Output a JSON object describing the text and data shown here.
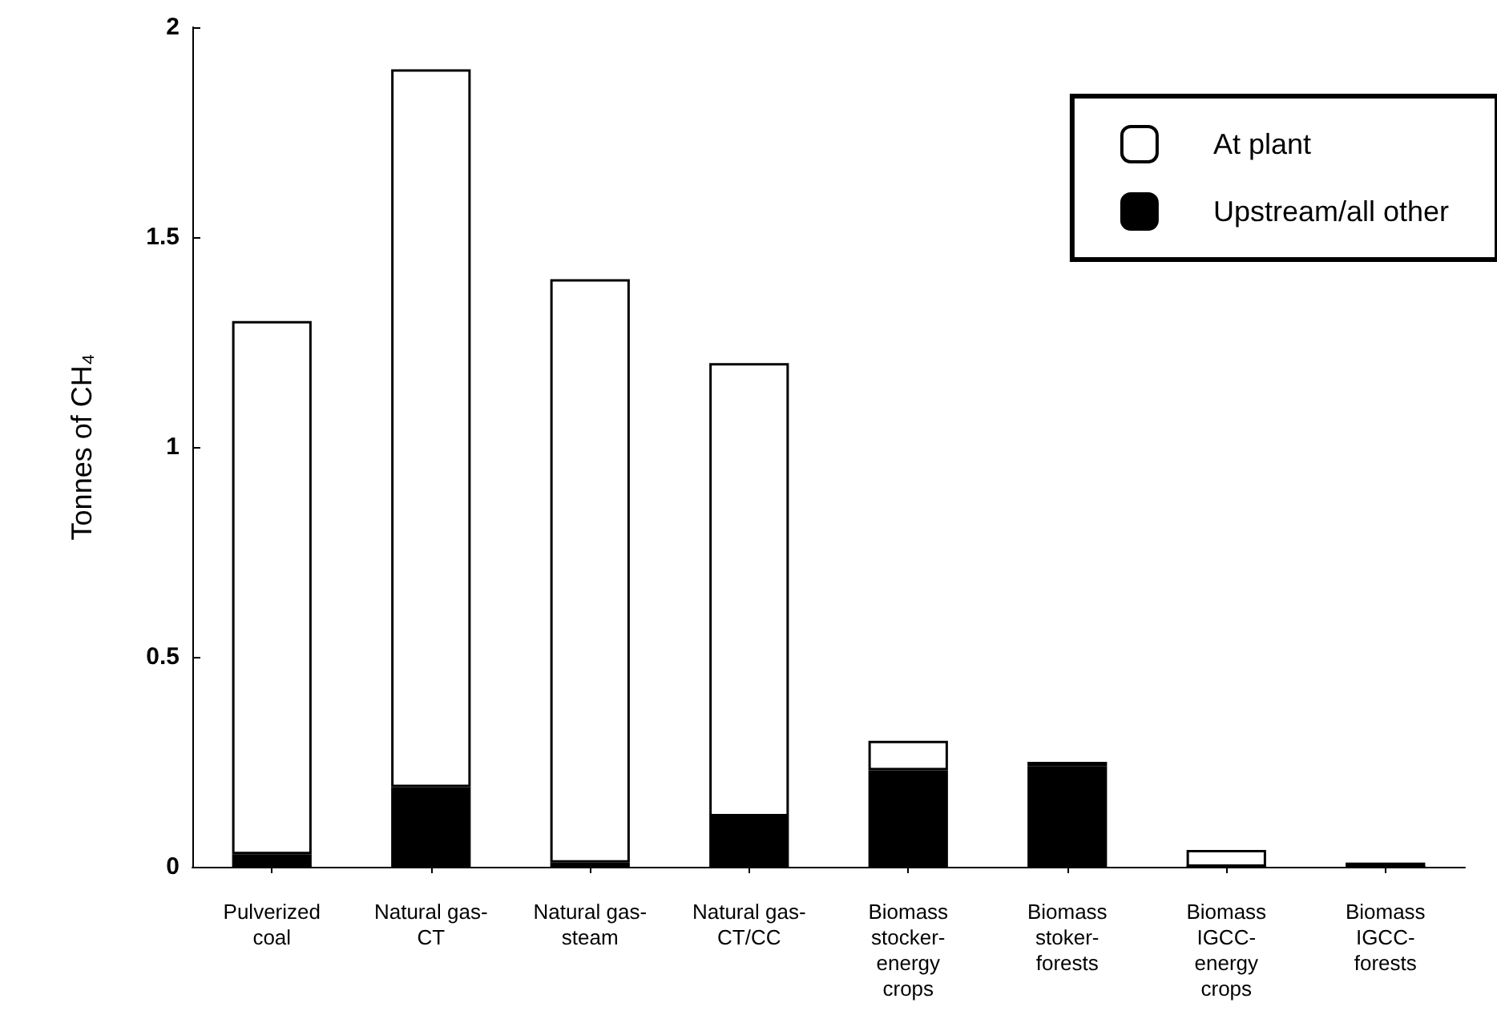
{
  "chart_data": {
    "type": "bar",
    "stacked": true,
    "ylabel": "Tonnes of CH₄",
    "categories": [
      "Pulverized\ncoal",
      "Natural gas-\nCT",
      "Natural gas-\nsteam",
      "Natural gas-\nCT/CC",
      "Biomass\nstocker-\nenergy\ncrops",
      "Biomass\nstoker-\nforests",
      "Biomass\nIGCC-\nenergy\ncrops",
      "Biomass\nIGCC-\nforests"
    ],
    "series": [
      {
        "name": "Upstream/all other",
        "color": "#000000",
        "values": [
          0.03,
          0.19,
          0.01,
          0.12,
          0.23,
          0.24,
          0,
          0
        ]
      },
      {
        "name": "At plant",
        "color": "#ffffff",
        "values": [
          1.27,
          1.71,
          1.39,
          1.08,
          0.07,
          0.01,
          0.04,
          0.01
        ]
      }
    ],
    "ylim": [
      0,
      2
    ],
    "yticks": [
      0,
      0.5,
      1,
      1.5,
      2
    ],
    "grid": false,
    "legend": "top right"
  }
}
